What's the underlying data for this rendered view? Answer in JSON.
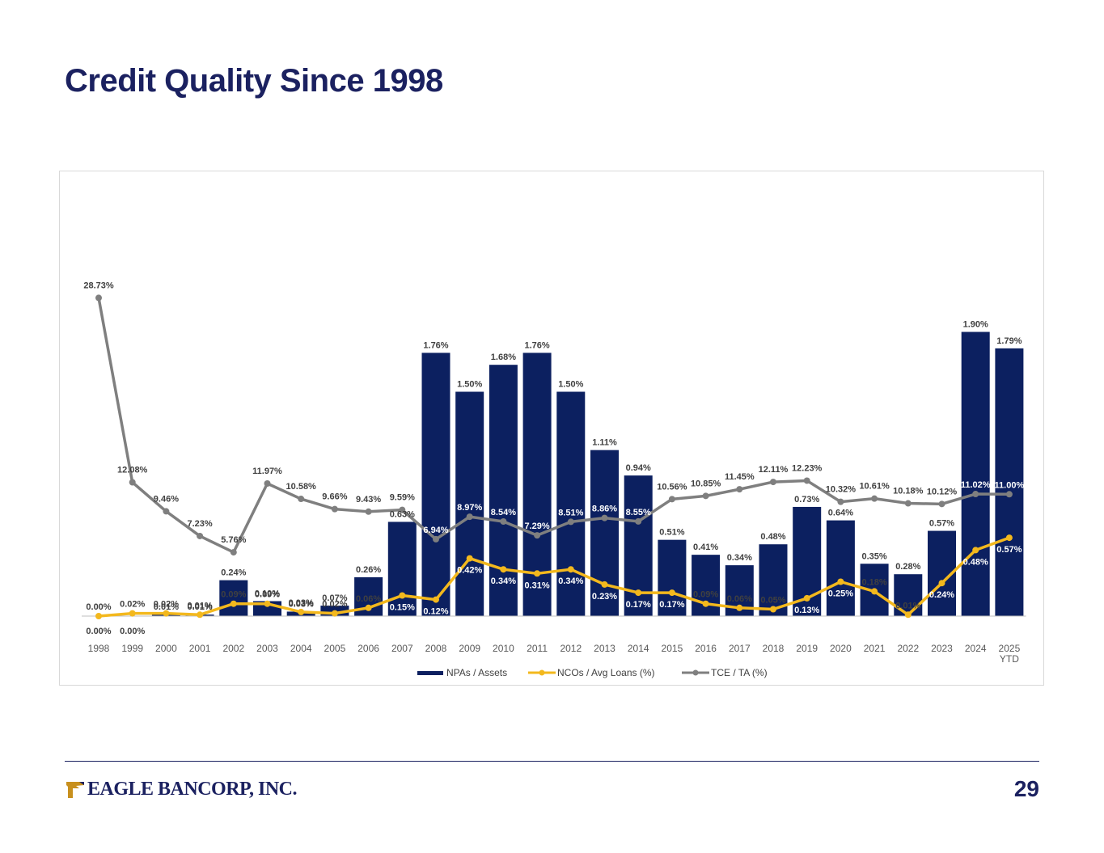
{
  "page": {
    "title": "Credit Quality Since 1998",
    "page_number": "29",
    "logo_text": "EAGLE BANCORP, INC."
  },
  "colors": {
    "title": "#1b2160",
    "npa_bar": "#0c2060",
    "nco_line": "#f3b81d",
    "tce_line": "#7f7f7f",
    "label": "#404040"
  },
  "chart_data": {
    "type": "bar",
    "title": "",
    "categories": [
      "1998",
      "1999",
      "2000",
      "2001",
      "2002",
      "2003",
      "2004",
      "2005",
      "2006",
      "2007",
      "2008",
      "2009",
      "2010",
      "2011",
      "2012",
      "2013",
      "2014",
      "2015",
      "2016",
      "2017",
      "2018",
      "2019",
      "2020",
      "2021",
      "2022",
      "2023",
      "2024",
      "2025\nYTD"
    ],
    "series": [
      {
        "name": "NPAs / Assets",
        "kind": "bar",
        "values": [
          0.0,
          0.0,
          0.01,
          0.01,
          0.24,
          0.1,
          0.03,
          0.07,
          0.26,
          0.63,
          1.76,
          1.5,
          1.68,
          1.76,
          1.5,
          1.11,
          0.94,
          0.51,
          0.41,
          0.34,
          0.48,
          0.73,
          0.64,
          0.35,
          0.28,
          0.57,
          1.9,
          1.79
        ],
        "labels": [
          "0.00%",
          "0.00%",
          "0.01%",
          "0.01%",
          "0.24%",
          "0.10%",
          "0.03%",
          "0.07%",
          "0.26%",
          "0.63%",
          "1.76%",
          "1.50%",
          "1.68%",
          "1.76%",
          "1.50%",
          "1.11%",
          "0.94%",
          "0.51%",
          "0.41%",
          "0.34%",
          "0.48%",
          "0.73%",
          "0.64%",
          "0.35%",
          "0.28%",
          "0.57%",
          "1.90%",
          "1.79%"
        ]
      },
      {
        "name": "NCOs / Avg Loans (%)",
        "kind": "line",
        "values": [
          0.0,
          0.02,
          0.02,
          0.01,
          0.09,
          0.09,
          0.03,
          0.02,
          0.06,
          0.15,
          0.12,
          0.42,
          0.34,
          0.31,
          0.34,
          0.23,
          0.17,
          0.17,
          0.09,
          0.06,
          0.05,
          0.13,
          0.25,
          0.18,
          0.01,
          0.24,
          0.48,
          0.57
        ],
        "labels": [
          "0.00%",
          "0.02%",
          "0.02%",
          "0.01%",
          "0.09%",
          "0.09%",
          "0.03%",
          "0.02%",
          "0.06%",
          "0.15%",
          "0.12%",
          "0.42%",
          "0.34%",
          "0.31%",
          "0.34%",
          "0.23%",
          "0.17%",
          "0.17%",
          "0.09%",
          "0.06%",
          "0.05%",
          "0.13%",
          "0.25%",
          "0.18%",
          "0.01%",
          "0.24%",
          "0.48%",
          "0.57%"
        ]
      },
      {
        "name": "TCE / TA (%)",
        "kind": "line",
        "values": [
          28.73,
          12.08,
          9.46,
          7.23,
          5.76,
          11.97,
          10.58,
          9.66,
          9.43,
          9.59,
          6.94,
          8.97,
          8.54,
          7.29,
          8.51,
          8.86,
          8.55,
          10.56,
          10.85,
          11.45,
          12.11,
          12.23,
          10.32,
          10.61,
          10.18,
          10.12,
          11.02,
          11.0
        ],
        "labels": [
          "28.73%",
          "12.08%",
          "9.46%",
          "7.23%",
          "5.76%",
          "11.97%",
          "10.58%",
          "9.66%",
          "9.43%",
          "9.59%",
          "6.94%",
          "8.97%",
          "8.54%",
          "7.29%",
          "8.51%",
          "8.86%",
          "8.55%",
          "10.56%",
          "10.85%",
          "11.45%",
          "12.11%",
          "12.23%",
          "10.32%",
          "10.61%",
          "10.18%",
          "10.12%",
          "11.02%",
          "11.00%"
        ]
      }
    ],
    "legend": [
      "NPAs / Assets",
      "NCOs / Avg Loans (%)",
      "TCE / TA (%)"
    ],
    "legend_position": "bottom",
    "grid": false
  }
}
